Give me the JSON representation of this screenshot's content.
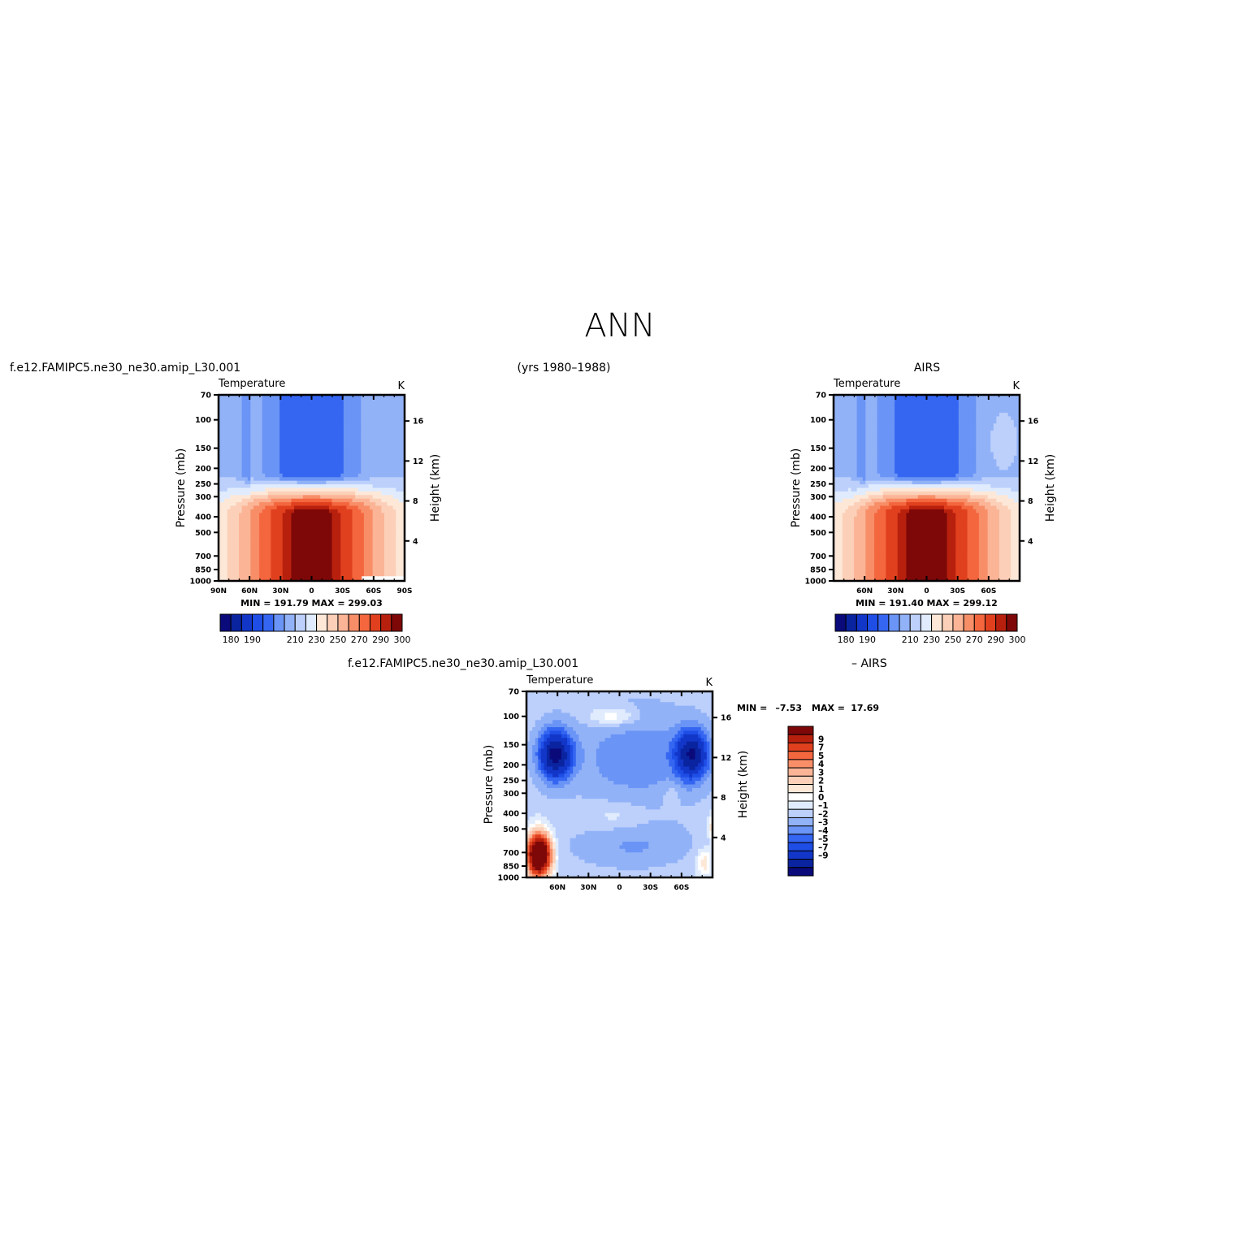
{
  "page": {
    "title": "ANN",
    "top_left_label": "f.e12.FAMIPC5.ne30_ne30.amip_L30.001",
    "top_center_label": "(yrs 1980–1988)",
    "top_right_label": "AIRS",
    "bottom_left_label": "f.e12.FAMIPC5.ne30_ne30.amip_L30.001",
    "bottom_right_label": "– AIRS"
  },
  "colors": {
    "abs_scale": [
      "#0a0a7a",
      "#0a24a0",
      "#1236c8",
      "#1e4ee6",
      "#3566f2",
      "#6a94f5",
      "#92b2f8",
      "#bcd0fb",
      "#e0ecfd",
      "#fde8d8",
      "#fcd0b8",
      "#fbb496",
      "#f88e68",
      "#f4663e",
      "#e0401e",
      "#b8200e",
      "#7e0808"
    ],
    "diff_scale": [
      "#0a0a7a",
      "#0a24a0",
      "#1236c8",
      "#1e4ee6",
      "#3566f2",
      "#6a94f5",
      "#92b2f8",
      "#bcd0fb",
      "#e0ecfd",
      "#ffffff",
      "#fde8d8",
      "#fcd0b8",
      "#fbb496",
      "#f88e68",
      "#f4663e",
      "#e0401e",
      "#b8200e",
      "#7e0808"
    ]
  },
  "chart_data": [
    {
      "id": "model",
      "type": "heatmap",
      "title": "Temperature",
      "units": "K",
      "ylabel": "Pressure (mb)",
      "y2label": "Height (km)",
      "x_ticks": [
        "90N",
        "60N",
        "30N",
        "0",
        "30S",
        "60S",
        "90S"
      ],
      "y_ticks": [
        "70",
        "100",
        "150",
        "200",
        "250",
        "300",
        "400",
        "500",
        "700",
        "850",
        "1000"
      ],
      "y2_ticks": [
        "16",
        "12",
        "8",
        "4"
      ],
      "stats": "MIN = 191.79   MAX = 299.03",
      "colorbar_labels": [
        "180",
        "190",
        "210",
        "230",
        "250",
        "270",
        "290",
        "300"
      ],
      "bounds": [
        180,
        185,
        190,
        195,
        200,
        205,
        210,
        220,
        230,
        240,
        250,
        260,
        270,
        280,
        290,
        295,
        300
      ],
      "scale": "abs",
      "field": "model",
      "min": 191.79,
      "max": 299.03
    },
    {
      "id": "obs",
      "type": "heatmap",
      "title": "Temperature",
      "units": "K",
      "ylabel": "Pressure (mb)",
      "y2label": "Height (km)",
      "x_ticks": [
        "60N",
        "30N",
        "0",
        "30S",
        "60S"
      ],
      "y_ticks": [
        "70",
        "100",
        "150",
        "200",
        "250",
        "300",
        "400",
        "500",
        "700",
        "850",
        "1000"
      ],
      "y2_ticks": [
        "16",
        "12",
        "8",
        "4"
      ],
      "stats": "MIN = 191.40   MAX = 299.12",
      "colorbar_labels": [
        "180",
        "190",
        "210",
        "230",
        "250",
        "270",
        "290",
        "300"
      ],
      "bounds": [
        180,
        185,
        190,
        195,
        200,
        205,
        210,
        220,
        230,
        240,
        250,
        260,
        270,
        280,
        290,
        295,
        300
      ],
      "scale": "abs",
      "field": "obs",
      "min": 191.4,
      "max": 299.12
    },
    {
      "id": "diff",
      "type": "heatmap",
      "title": "Temperature",
      "units": "K",
      "ylabel": "Pressure (mb)",
      "y2label": "Height (km)",
      "x_ticks": [
        "60N",
        "30N",
        "0",
        "30S",
        "60S"
      ],
      "y_ticks": [
        "70",
        "100",
        "150",
        "200",
        "250",
        "300",
        "400",
        "500",
        "700",
        "850",
        "1000"
      ],
      "y2_ticks": [
        "16",
        "12",
        "8",
        "4"
      ],
      "stats_min_label": "MIN =",
      "stats_min": "–7.53",
      "stats_max_label": "MAX =",
      "stats_max": "17.69",
      "colorbar_labels": [
        "9",
        "7",
        "5",
        "4",
        "3",
        "2",
        "1",
        "0",
        "–1",
        "–2",
        "–3",
        "–4",
        "–5",
        "–7",
        "–9"
      ],
      "bounds": [
        -9,
        -7,
        -5,
        -4,
        -3,
        -2,
        -1,
        -0.5,
        0,
        0.5,
        1,
        2,
        3,
        4,
        5,
        7,
        9
      ],
      "scale": "diff",
      "field": "diff",
      "min": -7.53,
      "max": 17.69
    }
  ]
}
